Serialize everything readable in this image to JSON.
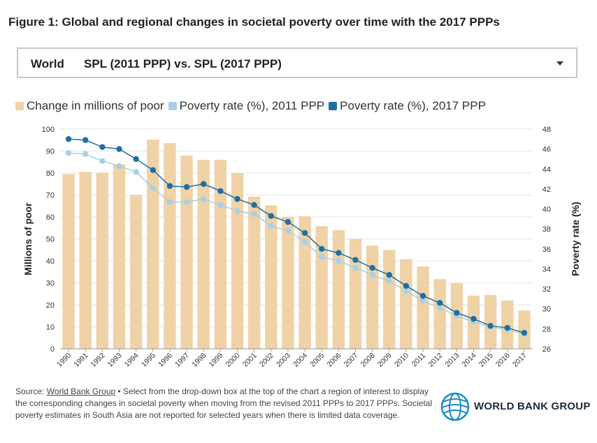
{
  "title": "Figure 1: Global and regional changes in societal poverty over time with the 2017 PPPs",
  "dropdown": {
    "region": "World",
    "option": "SPL (2011 PPP) vs. SPL (2017 PPP)",
    "icon": "caret-down-icon"
  },
  "legend": {
    "bars": "Change in millions of poor",
    "rate2011": "Poverty rate (%), 2011 PPP",
    "rate2017": "Poverty rate (%), 2017 PPP"
  },
  "source": {
    "prefix": "Source: ",
    "link": "World Bank Group",
    "text": " • Select from the drop-down box at the top of the chart a region of interest to display the corresponding changes in societal poverty when moving from the revised 2011 PPPs to 2017 PPPs. Societal poverty estimates in South Asia are not reported for selected years when there is limited data coverage."
  },
  "logo": {
    "text": "WORLD BANK GROUP",
    "icon": "globe-icon"
  },
  "colors": {
    "bar": "#efd2a6",
    "line2011": "#a8d0e8",
    "line2017": "#1d6fa5"
  },
  "chart_data": {
    "type": "bar",
    "categories": [
      "1990",
      "1991",
      "1992",
      "1993",
      "1994",
      "1995",
      "1996",
      "1997",
      "1998",
      "1999",
      "2000",
      "2001",
      "2002",
      "2003",
      "2004",
      "2005",
      "2006",
      "2007",
      "2008",
      "2009",
      "2010",
      "2011",
      "2012",
      "2013",
      "2014",
      "2015",
      "2016",
      "2017"
    ],
    "series": [
      {
        "name": "Change in millions of poor",
        "type": "bar",
        "axis": "left",
        "values": [
          79.5,
          80.5,
          80.2,
          84.0,
          70.0,
          95.2,
          93.6,
          88.0,
          86.0,
          86.0,
          80.0,
          69.2,
          65.3,
          60.0,
          60.3,
          55.8,
          54.0,
          50.0,
          47.0,
          45.0,
          40.8,
          37.5,
          31.7,
          29.8,
          24.2,
          24.5,
          22.0,
          17.4
        ]
      },
      {
        "name": "Poverty rate (%), 2011 PPP",
        "type": "line",
        "axis": "right",
        "values": [
          45.6,
          45.5,
          44.8,
          44.3,
          43.7,
          42.1,
          40.7,
          40.7,
          41.0,
          40.4,
          39.8,
          39.5,
          38.3,
          37.8,
          36.7,
          35.2,
          34.8,
          34.1,
          33.4,
          32.8,
          31.8,
          30.8,
          30.1,
          29.3,
          28.7,
          28.2,
          27.9,
          27.5
        ]
      },
      {
        "name": "Poverty rate (%), 2017 PPP",
        "type": "line",
        "axis": "right",
        "values": [
          47.0,
          46.9,
          46.2,
          46.0,
          45.0,
          43.9,
          42.3,
          42.2,
          42.5,
          41.8,
          41.0,
          40.4,
          39.3,
          38.7,
          37.6,
          36.0,
          35.6,
          34.9,
          34.1,
          33.4,
          32.3,
          31.3,
          30.6,
          29.6,
          29.0,
          28.3,
          28.1,
          27.6
        ]
      }
    ],
    "ylabel": "Millions of poor",
    "y2label": "Poverty rate (%)",
    "ylim": [
      0,
      100
    ],
    "y2lim": [
      26,
      48
    ],
    "yticks": [
      0,
      10,
      20,
      30,
      40,
      50,
      60,
      70,
      80,
      90,
      100
    ],
    "y2ticks": [
      26,
      28,
      30,
      32,
      34,
      36,
      38,
      40,
      42,
      44,
      46,
      48
    ],
    "grid": true,
    "legend_position": "top-left"
  }
}
